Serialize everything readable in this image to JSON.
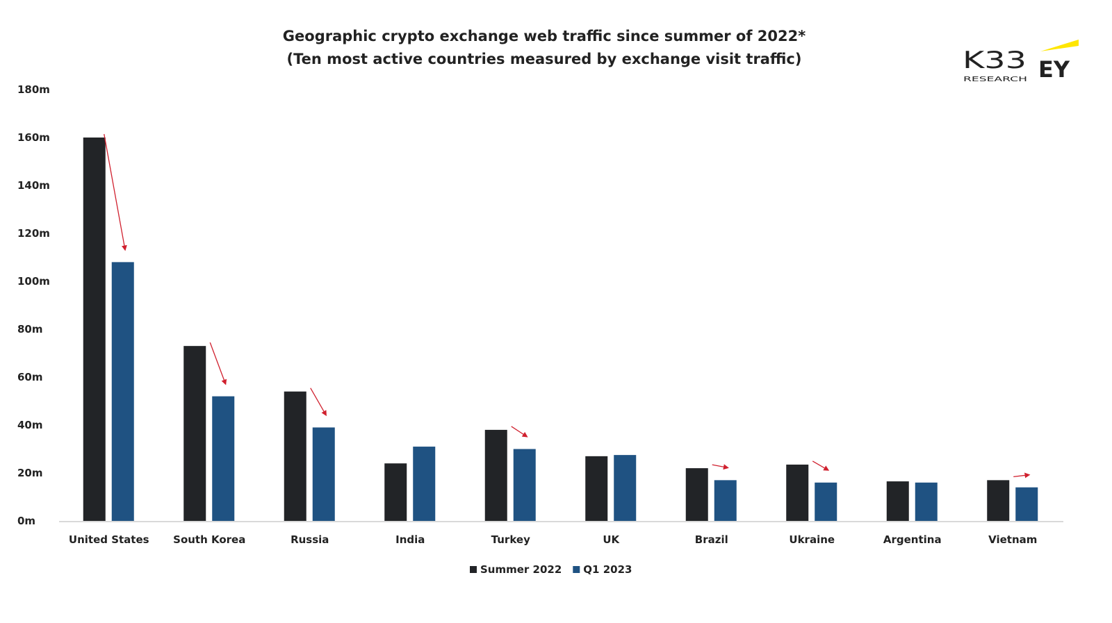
{
  "chart_data": {
    "type": "bar",
    "title": "Geographic crypto exchange web traffic since summer of 2022*",
    "subtitle": "(Ten most active countries measured by exchange visit traffic)",
    "categories": [
      "United States",
      "South Korea",
      "Russia",
      "India",
      "Turkey",
      "UK",
      "Brazil",
      "Ukraine",
      "Argentina",
      "Vietnam"
    ],
    "series": [
      {
        "name": "Summer 2022",
        "color": "#222427",
        "values": [
          160,
          73,
          54,
          24,
          38,
          27,
          22,
          23.5,
          16.5,
          17
        ]
      },
      {
        "name": "Q1 2023",
        "color": "#1f5282",
        "values": [
          108,
          52,
          39,
          31,
          30,
          27.5,
          17,
          16,
          16,
          14
        ]
      }
    ],
    "decline_arrows": [
      "United States",
      "South Korea",
      "Russia",
      "Turkey",
      "Brazil",
      "Ukraine",
      "Vietnam"
    ],
    "arrow_color": "#d0202e",
    "ylim": [
      0,
      180
    ],
    "yticks": [
      "0m",
      "20m",
      "40m",
      "60m",
      "80m",
      "100m",
      "120m",
      "140m",
      "160m",
      "180m"
    ],
    "grid": false,
    "legend": "bottom-center"
  },
  "logos": {
    "k33": "K33 RESEARCH",
    "ey": "EY"
  }
}
